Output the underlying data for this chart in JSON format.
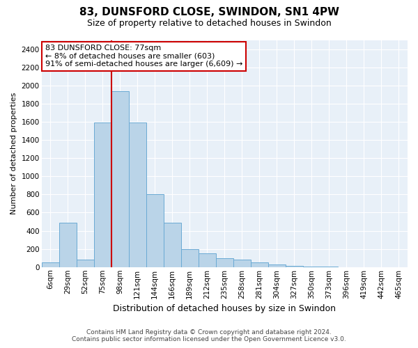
{
  "title": "83, DUNSFORD CLOSE, SWINDON, SN1 4PW",
  "subtitle": "Size of property relative to detached houses in Swindon",
  "xlabel": "Distribution of detached houses by size in Swindon",
  "ylabel": "Number of detached properties",
  "footer_line1": "Contains HM Land Registry data © Crown copyright and database right 2024.",
  "footer_line2": "Contains public sector information licensed under the Open Government Licence v3.0.",
  "annotation_line1": "83 DUNSFORD CLOSE: 77sqm",
  "annotation_line2": "← 8% of detached houses are smaller (603)",
  "annotation_line3": "91% of semi-detached houses are larger (6,609) →",
  "bar_color": "#bad4e8",
  "bar_edge_color": "#6aaad4",
  "redline_color": "#cc0000",
  "background_color": "#e8f0f8",
  "annotation_box_color": "#ffffff",
  "annotation_box_edge_color": "#cc0000",
  "ylim": [
    0,
    2500
  ],
  "yticks": [
    0,
    200,
    400,
    600,
    800,
    1000,
    1200,
    1400,
    1600,
    1800,
    2000,
    2200,
    2400
  ],
  "categories": [
    "6sqm",
    "29sqm",
    "52sqm",
    "75sqm",
    "98sqm",
    "121sqm",
    "144sqm",
    "166sqm",
    "189sqm",
    "212sqm",
    "235sqm",
    "258sqm",
    "281sqm",
    "304sqm",
    "327sqm",
    "350sqm",
    "373sqm",
    "396sqm",
    "419sqm",
    "442sqm",
    "465sqm"
  ],
  "values": [
    50,
    490,
    80,
    1590,
    1940,
    1590,
    800,
    490,
    200,
    155,
    100,
    80,
    50,
    30,
    10,
    5,
    3,
    2,
    1,
    0,
    0
  ],
  "red_line_index": 3.5,
  "figsize": [
    6.0,
    5.0
  ],
  "dpi": 100,
  "title_fontsize": 11,
  "subtitle_fontsize": 9,
  "ylabel_fontsize": 8,
  "xlabel_fontsize": 9,
  "tick_fontsize": 7.5,
  "footer_fontsize": 6.5,
  "annotation_fontsize": 8
}
